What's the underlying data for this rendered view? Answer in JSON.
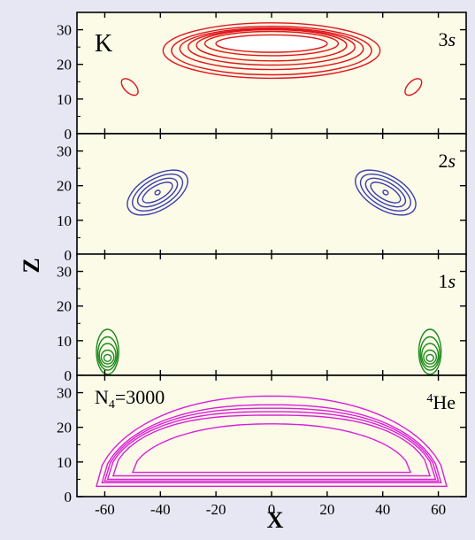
{
  "chart_data": {
    "type": "contour",
    "xlabel": "X",
    "ylabel": "Z",
    "xlim": [
      -70,
      70
    ],
    "x_ticks": [
      -60,
      -40,
      -20,
      0,
      20,
      40,
      60
    ],
    "panels": [
      {
        "id": "k-3s",
        "ylim": [
          0,
          35
        ],
        "y_ticks": [
          0,
          10,
          20,
          30
        ],
        "left_label": "K",
        "state_label": "3s",
        "color": "#e0161b",
        "contours": [
          {
            "cx": 0,
            "cz": 26,
            "rx": 20,
            "rz": 2.5,
            "fill": true
          },
          {
            "cx": 0,
            "cz": 26,
            "rx": 24,
            "rz": 3.5
          },
          {
            "cx": 0,
            "cz": 25.5,
            "rx": 27,
            "rz": 4.5
          },
          {
            "cx": 0,
            "cz": 25,
            "rx": 30,
            "rz": 5.2
          },
          {
            "cx": 0,
            "cz": 24.5,
            "rx": 33,
            "rz": 6
          },
          {
            "cx": 0,
            "cz": 24,
            "rx": 36,
            "rz": 7
          },
          {
            "cx": 0,
            "cz": 24,
            "rx": 39,
            "rz": 8
          },
          {
            "cx": -51,
            "cz": 13.5,
            "rx": 2,
            "rz": 3,
            "rot": -45
          },
          {
            "cx": 51,
            "cz": 13.5,
            "rx": 2,
            "rz": 3,
            "rot": 45
          }
        ]
      },
      {
        "id": "k-2s",
        "ylim": [
          0,
          35
        ],
        "y_ticks": [
          0,
          10,
          20,
          30
        ],
        "state_label": "2s",
        "color": "#3b3fb0",
        "contours": [
          {
            "cx": -41,
            "cz": 18,
            "rx": 1,
            "rz": 0.6,
            "fill": true,
            "rot": -30
          },
          {
            "cx": -41,
            "cz": 18,
            "rx": 6,
            "rz": 2,
            "rot": -30
          },
          {
            "cx": -41,
            "cz": 18,
            "rx": 8,
            "rz": 3,
            "rot": -30
          },
          {
            "cx": -41,
            "cz": 18,
            "rx": 10,
            "rz": 4,
            "rot": -30
          },
          {
            "cx": -41,
            "cz": 18,
            "rx": 12,
            "rz": 5,
            "rot": -30
          },
          {
            "cx": 41,
            "cz": 18,
            "rx": 1,
            "rz": 0.6,
            "fill": true,
            "rot": 30
          },
          {
            "cx": 41,
            "cz": 18,
            "rx": 6,
            "rz": 2,
            "rot": 30
          },
          {
            "cx": 41,
            "cz": 18,
            "rx": 8,
            "rz": 3,
            "rot": 30
          },
          {
            "cx": 41,
            "cz": 18,
            "rx": 10,
            "rz": 4,
            "rot": 30
          },
          {
            "cx": 41,
            "cz": 18,
            "rx": 12,
            "rz": 5,
            "rot": 30
          }
        ]
      },
      {
        "id": "k-1s",
        "ylim": [
          0,
          35
        ],
        "y_ticks": [
          0,
          10,
          20,
          30
        ],
        "state_label": "1s",
        "color": "#1d8a1d",
        "contours": [
          {
            "cx": -59,
            "cz": 5,
            "rx": 1.3,
            "rz": 1,
            "fill": true
          },
          {
            "cx": -59,
            "cz": 5.3,
            "rx": 2.3,
            "rz": 2
          },
          {
            "cx": -59,
            "cz": 5.8,
            "rx": 3,
            "rz": 3.4
          },
          {
            "cx": -59,
            "cz": 6.3,
            "rx": 3.5,
            "rz": 4.8
          },
          {
            "cx": -59,
            "cz": 6.8,
            "rx": 4,
            "rz": 6.5
          },
          {
            "cx": 57,
            "cz": 5,
            "rx": 1.3,
            "rz": 1,
            "fill": true
          },
          {
            "cx": 57,
            "cz": 5.3,
            "rx": 2.3,
            "rz": 2
          },
          {
            "cx": 57,
            "cz": 5.8,
            "rx": 3,
            "rz": 3.4
          },
          {
            "cx": 57,
            "cz": 6.3,
            "rx": 3.5,
            "rz": 4.8
          },
          {
            "cx": 57,
            "cz": 6.8,
            "rx": 4,
            "rz": 6.5
          }
        ]
      },
      {
        "id": "he4",
        "ylim": [
          0,
          35
        ],
        "y_ticks": [
          0,
          10,
          20,
          30
        ],
        "left_label": "N_4=3000",
        "state_label": "4He",
        "color": "#d91fd9",
        "contours": [
          {
            "kind": "dome",
            "x0": -63,
            "x1": 63,
            "z0": 3,
            "ztop": 29,
            "k": 2.2
          },
          {
            "kind": "dome",
            "x0": -61,
            "x1": 61,
            "z0": 4,
            "ztop": 26.5,
            "k": 2.4
          },
          {
            "kind": "dome",
            "x0": -60,
            "x1": 60,
            "z0": 4.5,
            "ztop": 25.5,
            "k": 2.5
          },
          {
            "kind": "dome",
            "x0": -59,
            "x1": 59,
            "z0": 5,
            "ztop": 24.5,
            "k": 2.6
          },
          {
            "kind": "dome",
            "x0": -57,
            "x1": 57,
            "z0": 6,
            "ztop": 23.5,
            "k": 2.7
          },
          {
            "kind": "dome",
            "x0": -50,
            "x1": 50,
            "z0": 7,
            "ztop": 21,
            "k": 2.2
          }
        ]
      }
    ]
  }
}
